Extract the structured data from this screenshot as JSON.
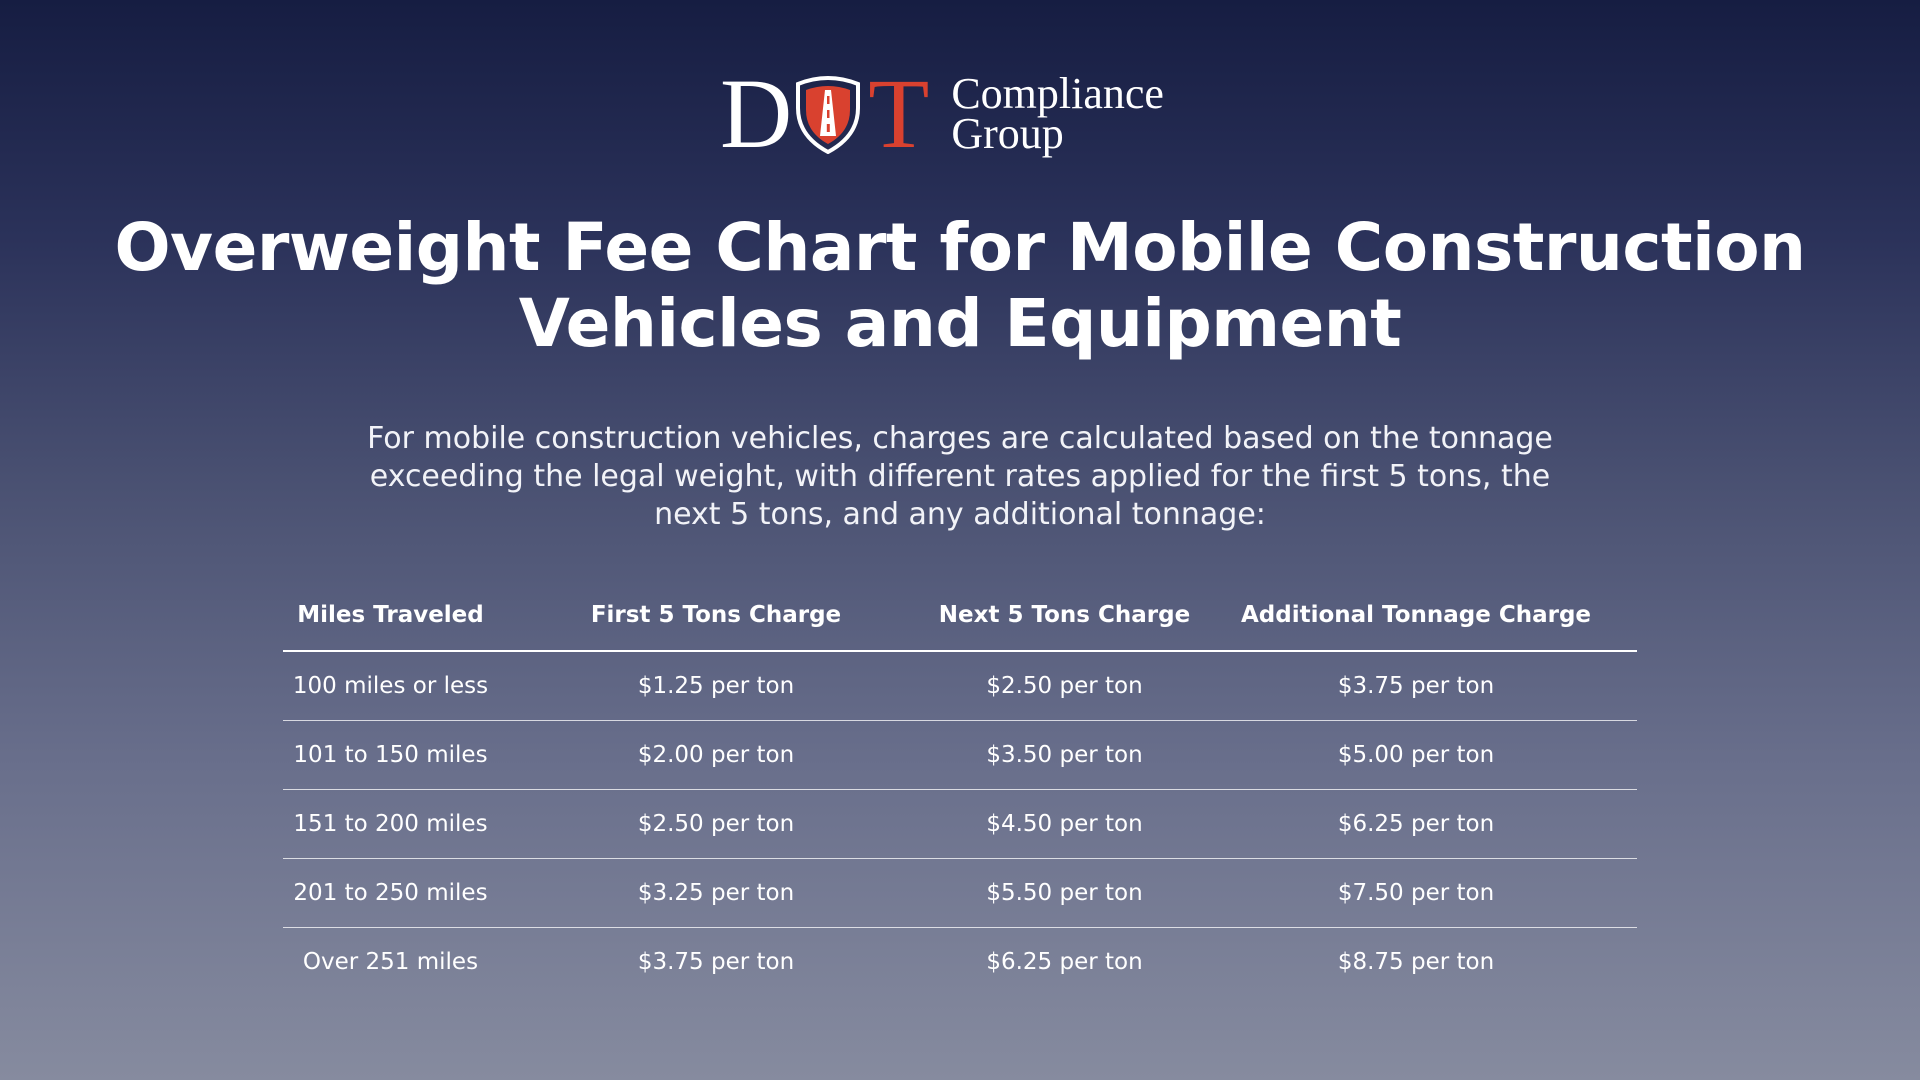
{
  "logo": {
    "letter_d": "D",
    "letter_t": "T",
    "word1": "Compliance",
    "word2": "Group",
    "accent_color": "#d9412f",
    "icon": "shield-road-icon"
  },
  "title": "Overweight Fee Chart for Mobile Construction Vehicles and Equipment",
  "intro": "For mobile construction vehicles, charges are calculated based on the tonnage exceeding the legal weight, with different rates applied for the first 5 tons, the next 5 tons, and any additional tonnage:",
  "table": {
    "headers": [
      "Miles Traveled",
      "First 5 Tons Charge",
      "Next 5 Tons Charge",
      "Additional Tonnage Charge"
    ],
    "rows": [
      [
        "100 miles or less",
        "$1.25 per ton",
        "$2.50 per ton",
        "$3.75 per ton"
      ],
      [
        "101 to 150 miles",
        "$2.00 per ton",
        "$3.50 per ton",
        "$5.00 per ton"
      ],
      [
        "151 to 200 miles",
        "$2.50 per ton",
        "$4.50 per ton",
        "$6.25 per ton"
      ],
      [
        "201 to 250 miles",
        "$3.25 per ton",
        "$5.50 per ton",
        "$7.50 per ton"
      ],
      [
        "Over 251 miles",
        "$3.75 per ton",
        "$6.25 per ton",
        "$8.75 per ton"
      ]
    ]
  }
}
